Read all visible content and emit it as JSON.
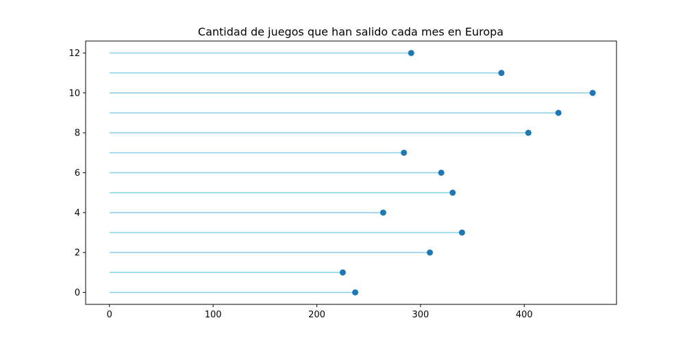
{
  "chart_data": {
    "type": "lollipop",
    "orientation": "horizontal",
    "title": "Cantidad de juegos que han salido cada mes en Europa",
    "xlabel": "",
    "ylabel": "",
    "xlim": [
      -23,
      489
    ],
    "ylim": [
      -0.6,
      12.6
    ],
    "x_ticks": [
      0,
      100,
      200,
      300,
      400
    ],
    "y_ticks": [
      0,
      2,
      4,
      6,
      8,
      10,
      12
    ],
    "grid": false,
    "colors": {
      "stem": "#87ceeb",
      "marker": "#1f77b4"
    },
    "points": [
      {
        "y": 0,
        "x": 237
      },
      {
        "y": 1,
        "x": 225
      },
      {
        "y": 2,
        "x": 309
      },
      {
        "y": 3,
        "x": 340
      },
      {
        "y": 4,
        "x": 264
      },
      {
        "y": 5,
        "x": 331
      },
      {
        "y": 6,
        "x": 320
      },
      {
        "y": 7,
        "x": 284
      },
      {
        "y": 8,
        "x": 404
      },
      {
        "y": 9,
        "x": 433
      },
      {
        "y": 10,
        "x": 466
      },
      {
        "y": 11,
        "x": 378
      },
      {
        "y": 12,
        "x": 291
      }
    ]
  }
}
